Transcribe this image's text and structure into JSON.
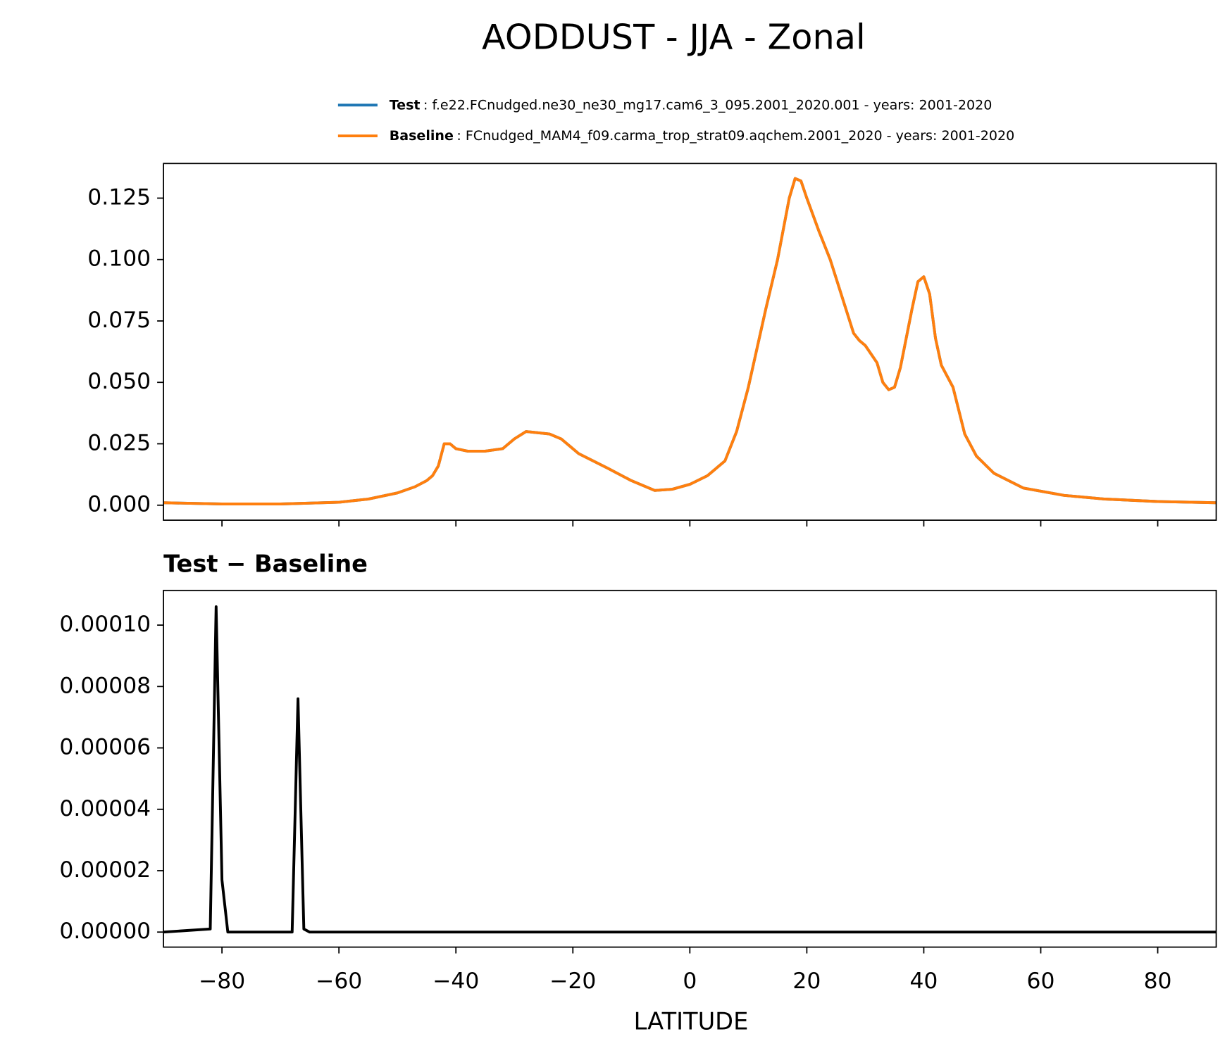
{
  "title": "AODDUST - JJA - Zonal",
  "chart_data": [
    {
      "type": "line",
      "x": [
        -90,
        -80,
        -70,
        -60,
        -55,
        -50,
        -47,
        -45,
        -44,
        -43,
        -42,
        -41,
        -40,
        -38,
        -35,
        -32,
        -30,
        -28,
        -26,
        -24,
        -22,
        -19,
        -14,
        -10,
        -6,
        -3,
        0,
        3,
        6,
        8,
        10,
        13,
        15,
        17,
        18,
        19,
        20,
        22,
        24,
        26,
        28,
        29,
        30,
        32,
        33,
        34,
        35,
        36,
        37,
        38,
        39,
        40,
        41,
        42,
        43,
        45,
        47,
        49,
        52,
        57,
        64,
        71,
        80,
        90
      ],
      "series": [
        {
          "name": "Test",
          "description": ": f.e22.FCnudged.ne30_ne30_mg17.cam6_3_095.2001_2020.001 - years: 2001-2020",
          "color": "#1f77b4",
          "values": [
            0.001,
            0.0005,
            0.0005,
            0.0012,
            0.0025,
            0.005,
            0.0075,
            0.01,
            0.012,
            0.016,
            0.025,
            0.025,
            0.023,
            0.022,
            0.022,
            0.023,
            0.027,
            0.03,
            0.0295,
            0.029,
            0.027,
            0.021,
            0.015,
            0.01,
            0.006,
            0.0065,
            0.0085,
            0.012,
            0.018,
            0.03,
            0.048,
            0.08,
            0.1,
            0.125,
            0.133,
            0.132,
            0.125,
            0.112,
            0.1,
            0.085,
            0.07,
            0.067,
            0.065,
            0.058,
            0.05,
            0.047,
            0.048,
            0.056,
            0.068,
            0.08,
            0.091,
            0.093,
            0.086,
            0.068,
            0.057,
            0.048,
            0.029,
            0.02,
            0.013,
            0.007,
            0.004,
            0.0025,
            0.0015,
            0.001
          ]
        },
        {
          "name": "Baseline",
          "description": ": FCnudged_MAM4_f09.carma_trop_strat09.aqchem.2001_2020 - years: 2001-2020",
          "color": "#ff7f0e",
          "values": [
            0.001,
            0.0005,
            0.0005,
            0.0012,
            0.0025,
            0.005,
            0.0075,
            0.01,
            0.012,
            0.016,
            0.025,
            0.025,
            0.023,
            0.022,
            0.022,
            0.023,
            0.027,
            0.03,
            0.0295,
            0.029,
            0.027,
            0.021,
            0.015,
            0.01,
            0.006,
            0.0065,
            0.0085,
            0.012,
            0.018,
            0.03,
            0.048,
            0.08,
            0.1,
            0.125,
            0.133,
            0.132,
            0.125,
            0.112,
            0.1,
            0.085,
            0.07,
            0.067,
            0.065,
            0.058,
            0.05,
            0.047,
            0.048,
            0.056,
            0.068,
            0.08,
            0.091,
            0.093,
            0.086,
            0.068,
            0.057,
            0.048,
            0.029,
            0.02,
            0.013,
            0.007,
            0.004,
            0.0025,
            0.0015,
            0.001
          ]
        }
      ],
      "xlim": [
        -90,
        90
      ],
      "xticks": [
        -80,
        -60,
        -40,
        -20,
        0,
        20,
        40,
        60,
        80
      ],
      "ylim": [
        -0.0061,
        0.1391
      ],
      "yticks": [
        {
          "value": 0,
          "label": "0.000"
        },
        0.025,
        {
          "value": 0.05,
          "label": "0.050"
        },
        0.075,
        {
          "value": 0.1,
          "label": "0.100"
        },
        0.125
      ]
    },
    {
      "type": "line",
      "title": "Test − Baseline",
      "xlabel": "LATITUDE",
      "x": [
        -90,
        -82,
        -81,
        -80,
        -79,
        -68,
        -67,
        -66,
        -65,
        90
      ],
      "series": [
        {
          "color": "#000000",
          "values": [
            0,
            1e-06,
            0.000106,
            1.7e-05,
            0,
            0,
            7.6e-05,
            1e-06,
            0,
            0
          ]
        }
      ],
      "xlim": [
        -90,
        90
      ],
      "xticks": [
        {
          "value": -80,
          "label": "−80"
        },
        {
          "value": -60,
          "label": "−60"
        },
        {
          "value": -40,
          "label": "−40"
        },
        {
          "value": -20,
          "label": "−20"
        },
        0,
        20,
        40,
        60,
        80
      ],
      "ylim": [
        -4.9e-06,
        0.0001113
      ],
      "yticks": [
        {
          "value": 0,
          "label": "0.00000"
        },
        {
          "value": 2e-05,
          "label": "0.00002"
        },
        {
          "value": 4e-05,
          "label": "0.00004"
        },
        {
          "value": 6e-05,
          "label": "0.00006"
        },
        {
          "value": 8e-05,
          "label": "0.00008"
        },
        {
          "value": 0.0001,
          "label": "0.00010"
        }
      ]
    }
  ]
}
